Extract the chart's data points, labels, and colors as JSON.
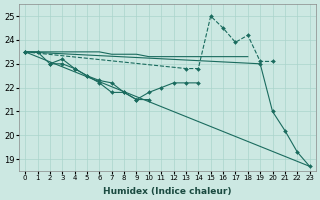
{
  "background_color": "#cce8e2",
  "grid_color": "#aad4cc",
  "line_color": "#1a6b5e",
  "xlabel": "Humidex (Indice chaleur)",
  "ylim": [
    18.5,
    25.5
  ],
  "xlim": [
    -0.5,
    23.5
  ],
  "yticks": [
    19,
    20,
    21,
    22,
    23,
    24,
    25
  ],
  "xticks": [
    0,
    1,
    2,
    3,
    4,
    5,
    6,
    7,
    8,
    9,
    10,
    11,
    12,
    13,
    14,
    15,
    16,
    17,
    18,
    19,
    20,
    21,
    22,
    23
  ],
  "series": [
    {
      "name": "flat_no_marker",
      "x": [
        0,
        1,
        2,
        3,
        4,
        5,
        6,
        7,
        8,
        9,
        10,
        11,
        12,
        13,
        14,
        15,
        16,
        17,
        18
      ],
      "y": [
        23.5,
        23.5,
        23.5,
        23.5,
        23.5,
        23.5,
        23.5,
        23.4,
        23.4,
        23.4,
        23.3,
        23.3,
        23.3,
        23.3,
        23.3,
        23.3,
        23.3,
        23.3,
        23.3
      ],
      "marker": false,
      "linestyle": "-",
      "linewidth": 0.8
    },
    {
      "name": "diagonal_no_marker",
      "x": [
        0,
        23
      ],
      "y": [
        23.5,
        18.7
      ],
      "marker": false,
      "linestyle": "-",
      "linewidth": 0.8
    },
    {
      "name": "curve_markers_1",
      "x": [
        0,
        1,
        2,
        3,
        4,
        5,
        6,
        7,
        8,
        9,
        10,
        11,
        12,
        13,
        14
      ],
      "y": [
        23.5,
        23.5,
        23.0,
        23.2,
        22.8,
        22.5,
        22.3,
        22.2,
        21.8,
        21.5,
        21.8,
        22.0,
        22.2,
        22.2,
        22.2
      ],
      "marker": true,
      "linestyle": "-",
      "linewidth": 0.8
    },
    {
      "name": "curve_markers_2",
      "x": [
        2,
        3,
        4,
        5,
        6,
        7,
        8,
        9,
        10
      ],
      "y": [
        23.0,
        23.0,
        22.8,
        22.5,
        22.2,
        21.8,
        21.8,
        21.5,
        21.5
      ],
      "marker": true,
      "linestyle": "-",
      "linewidth": 0.8
    },
    {
      "name": "dashed_spike",
      "x": [
        0,
        13,
        14,
        15,
        16,
        17,
        18,
        19,
        20
      ],
      "y": [
        23.5,
        22.8,
        22.8,
        25.0,
        24.5,
        23.9,
        24.2,
        23.1,
        23.1
      ],
      "marker": true,
      "linestyle": "--",
      "linewidth": 0.8
    },
    {
      "name": "declining_markers",
      "x": [
        0,
        19,
        20,
        21,
        22,
        23
      ],
      "y": [
        23.5,
        23.0,
        21.0,
        20.2,
        19.3,
        18.7
      ],
      "marker": true,
      "linestyle": "-",
      "linewidth": 0.8
    }
  ]
}
